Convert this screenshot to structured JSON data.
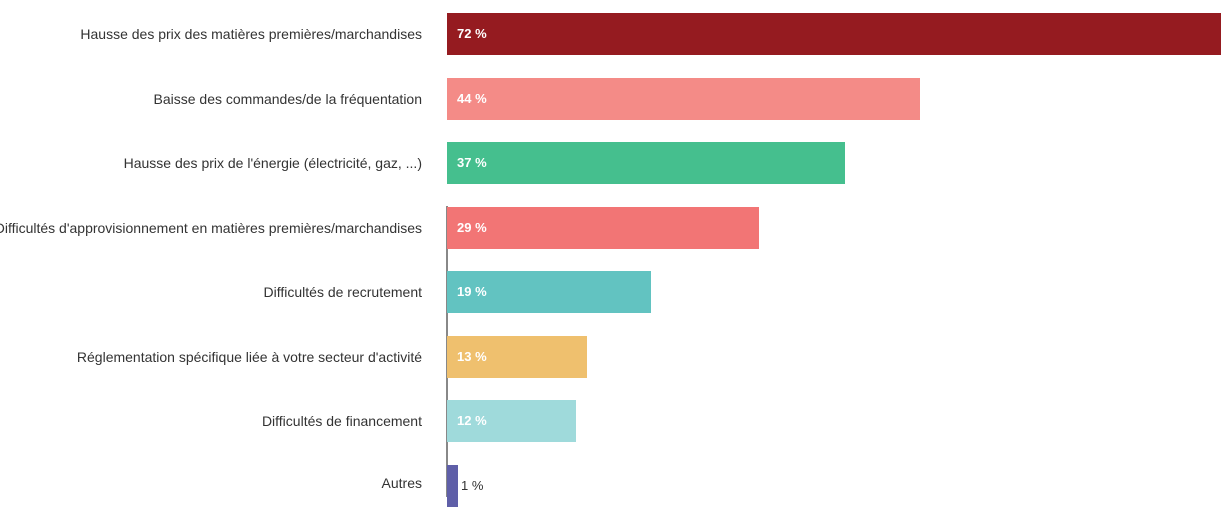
{
  "chart_data": {
    "type": "bar",
    "orientation": "horizontal",
    "categories": [
      "Hausse des prix des matières premières/marchandises",
      "Baisse des commandes/de la fréquentation",
      "Hausse des prix de l'énergie (électricité, gaz, ...)",
      "Difficultés d'approvisionnement en matières premières/marchandises",
      "Difficultés de recrutement",
      "Réglementation spécifique liée à votre secteur d'activité",
      "Difficultés de financement",
      "Autres"
    ],
    "values": [
      72,
      44,
      37,
      29,
      19,
      13,
      12,
      1
    ],
    "value_labels": [
      "72 %",
      "44 %",
      "37 %",
      "29 %",
      "19 %",
      "13 %",
      "12 %",
      "1 %"
    ],
    "colors": [
      "#951b20",
      "#f48b87",
      "#45bf8e",
      "#f27575",
      "#62c3c1",
      "#efc06e",
      "#9fdadb",
      "#5f5fa8"
    ],
    "xlim": [
      0,
      72
    ],
    "title": "",
    "xlabel": "",
    "ylabel": ""
  }
}
